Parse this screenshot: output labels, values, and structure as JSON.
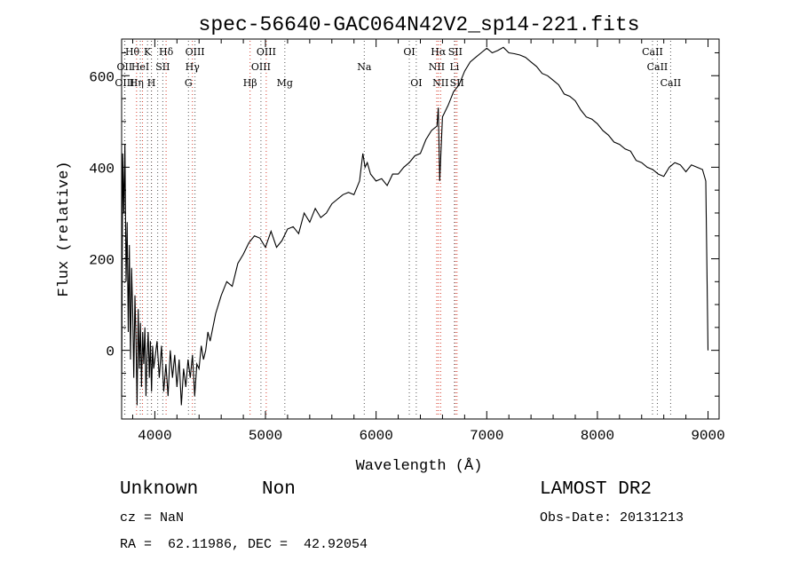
{
  "chart_data": {
    "type": "line",
    "title": "spec-56640-GAC064N42V2_sp14-221.fits",
    "xlabel": "Wavelength (Å)",
    "ylabel": "Flux (relative)",
    "xlim": [
      3700,
      9100
    ],
    "ylim": [
      -150,
      680
    ],
    "xticks": [
      4000,
      5000,
      6000,
      7000,
      8000,
      9000
    ],
    "yticks": [
      0,
      200,
      400,
      600
    ],
    "grid": false,
    "series": [
      {
        "x": [
          3700,
          3710,
          3720,
          3730,
          3740,
          3750,
          3760,
          3770,
          3780,
          3790,
          3800,
          3810,
          3820,
          3830,
          3840,
          3850,
          3860,
          3870,
          3880,
          3890,
          3900,
          3910,
          3920,
          3930,
          3940,
          3950,
          3960,
          3970,
          3980,
          3990,
          4000,
          4020,
          4040,
          4060,
          4080,
          4100,
          4120,
          4140,
          4160,
          4180,
          4200,
          4220,
          4240,
          4260,
          4280,
          4300,
          4320,
          4340,
          4360,
          4380,
          4400,
          4420,
          4440,
          4460,
          4480,
          4500,
          4550,
          4600,
          4650,
          4700,
          4750,
          4800,
          4850,
          4900,
          4950,
          5000,
          5050,
          5100,
          5150,
          5200,
          5250,
          5300,
          5350,
          5400,
          5450,
          5500,
          5550,
          5600,
          5650,
          5700,
          5750,
          5800,
          5850,
          5880,
          5900,
          5920,
          5950,
          6000,
          6050,
          6100,
          6150,
          6200,
          6250,
          6300,
          6350,
          6400,
          6450,
          6500,
          6550,
          6562,
          6575,
          6600,
          6650,
          6700,
          6750,
          6800,
          6850,
          6900,
          6950,
          7000,
          7050,
          7100,
          7150,
          7200,
          7250,
          7300,
          7350,
          7400,
          7450,
          7500,
          7550,
          7600,
          7650,
          7700,
          7750,
          7800,
          7850,
          7900,
          7950,
          8000,
          8050,
          8100,
          8150,
          8200,
          8250,
          8300,
          8350,
          8400,
          8450,
          8500,
          8550,
          8600,
          8650,
          8700,
          8750,
          8800,
          8850,
          8900,
          8950,
          8980,
          9000
        ],
        "y": [
          -100,
          430,
          300,
          450,
          150,
          280,
          40,
          230,
          -20,
          180,
          80,
          -60,
          120,
          20,
          -120,
          90,
          -40,
          60,
          -80,
          40,
          -30,
          50,
          -100,
          -10,
          40,
          -60,
          20,
          -90,
          10,
          -40,
          -20,
          20,
          -60,
          10,
          -90,
          -30,
          -100,
          0,
          -60,
          -10,
          -80,
          -20,
          -120,
          -40,
          -80,
          -20,
          -60,
          -10,
          -100,
          -30,
          -40,
          10,
          -20,
          0,
          40,
          20,
          80,
          120,
          150,
          140,
          190,
          210,
          235,
          250,
          245,
          225,
          260,
          225,
          240,
          265,
          270,
          255,
          300,
          280,
          310,
          290,
          300,
          320,
          330,
          340,
          345,
          340,
          370,
          430,
          400,
          410,
          385,
          370,
          375,
          360,
          385,
          385,
          400,
          410,
          425,
          430,
          460,
          480,
          490,
          530,
          370,
          510,
          535,
          565,
          580,
          610,
          630,
          640,
          650,
          660,
          650,
          655,
          662,
          650,
          648,
          645,
          640,
          630,
          620,
          605,
          600,
          590,
          580,
          560,
          555,
          545,
          525,
          510,
          505,
          495,
          480,
          470,
          455,
          450,
          440,
          435,
          415,
          410,
          400,
          395,
          385,
          380,
          400,
          410,
          405,
          390,
          405,
          400,
          395,
          370,
          0
        ]
      }
    ],
    "line_markers": {
      "red": [
        3835,
        3889,
        3970,
        4102,
        4340,
        4861,
        5007,
        6548,
        6563,
        6583,
        6716,
        6731
      ],
      "black": [
        3727,
        3729,
        3869,
        3934,
        3969,
        4026,
        4072,
        4304,
        4363,
        4959,
        5175,
        5893,
        6300,
        6363,
        6708,
        8498,
        8542,
        8662
      ]
    },
    "line_labels": [
      {
        "text": "Hθ",
        "x": 3797,
        "row": 1
      },
      {
        "text": "K",
        "x": 3934,
        "row": 1
      },
      {
        "text": "Hδ",
        "x": 4102,
        "row": 1
      },
      {
        "text": "OIII",
        "x": 4363,
        "row": 1
      },
      {
        "text": "OIII",
        "x": 5007,
        "row": 1
      },
      {
        "text": "OI",
        "x": 6300,
        "row": 1
      },
      {
        "text": "Hα",
        "x": 6563,
        "row": 1
      },
      {
        "text": "SII",
        "x": 6716,
        "row": 1
      },
      {
        "text": "CaII",
        "x": 8498,
        "row": 1
      },
      {
        "text": "OII",
        "x": 3727,
        "row": 2
      },
      {
        "text": "HeI",
        "x": 3869,
        "row": 2
      },
      {
        "text": "SII",
        "x": 4072,
        "row": 2
      },
      {
        "text": "Hγ",
        "x": 4340,
        "row": 2
      },
      {
        "text": "OIII",
        "x": 4959,
        "row": 2
      },
      {
        "text": "Na",
        "x": 5893,
        "row": 2
      },
      {
        "text": "NII",
        "x": 6548,
        "row": 2
      },
      {
        "text": "Li",
        "x": 6708,
        "row": 2
      },
      {
        "text": "CaII",
        "x": 8542,
        "row": 2
      },
      {
        "text": "OIII",
        "x": 3727,
        "row": 3
      },
      {
        "text": "Hη",
        "x": 3835,
        "row": 3
      },
      {
        "text": "H",
        "x": 3969,
        "row": 3
      },
      {
        "text": "G",
        "x": 4304,
        "row": 3
      },
      {
        "text": "Hβ",
        "x": 4861,
        "row": 3
      },
      {
        "text": "Mg",
        "x": 5175,
        "row": 3
      },
      {
        "text": "OI",
        "x": 6363,
        "row": 3
      },
      {
        "text": "NII",
        "x": 6583,
        "row": 3
      },
      {
        "text": "SII",
        "x": 6731,
        "row": 3
      },
      {
        "text": "CaII",
        "x": 8662,
        "row": 3
      }
    ]
  },
  "info": {
    "class": "Unknown",
    "subclass": "Non",
    "survey": "LAMOST DR2",
    "cz": "cz = NaN",
    "obs_date": "Obs-Date: 20131213",
    "coords": "RA =  62.11986, DEC =  42.92054"
  }
}
